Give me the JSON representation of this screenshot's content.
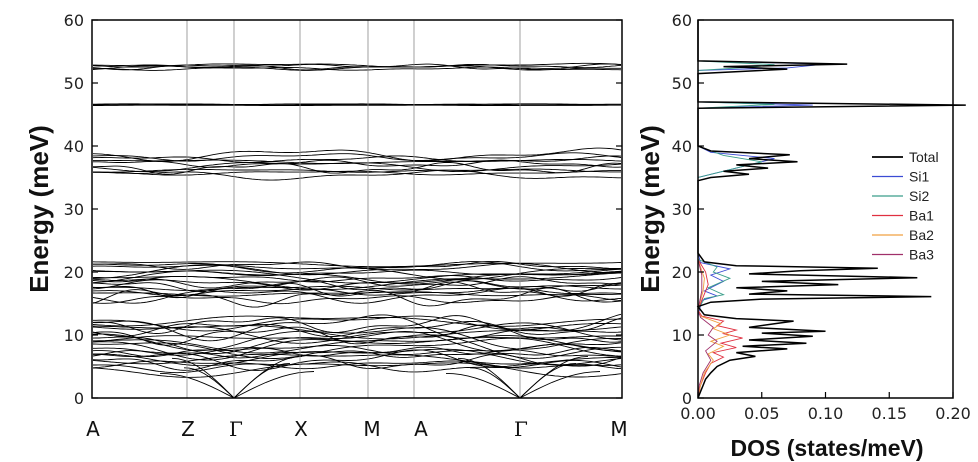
{
  "chart_data": [
    {
      "type": "line",
      "ylabel": "Energy (meV)",
      "ylim": [
        0,
        60
      ],
      "yticks": [
        "0",
        "10",
        "20",
        "30",
        "40",
        "50",
        "60"
      ],
      "kpath": [
        "A",
        "Z",
        "Γ",
        "X",
        "M",
        "A",
        "Γ",
        "M"
      ],
      "grid": "vertical lines at high-symmetry points",
      "band_groups_meV": {
        "acoustic_max": 6.5,
        "low_band_range": [
          3.5,
          13
        ],
        "mid_band_range": [
          15,
          22
        ],
        "upper_band_range": [
          35,
          39
        ],
        "flat_band": 46.5,
        "top_band_range": [
          52,
          53
        ]
      }
    },
    {
      "type": "line",
      "xlabel": "DOS (states/meV)",
      "ylabel": "Energy (meV)",
      "xlim": [
        0,
        0.2
      ],
      "ylim": [
        0,
        60
      ],
      "xticks": [
        "0.00",
        "0.05",
        "0.10",
        "0.15",
        "0.20"
      ],
      "yticks": [
        "0",
        "10",
        "20",
        "30",
        "40",
        "50",
        "60"
      ],
      "legend_position": "right",
      "series": [
        {
          "name": "Total",
          "color": "#000000",
          "points": [
            [
              0,
              0
            ],
            [
              0.002,
              1
            ],
            [
              0.004,
              2
            ],
            [
              0.006,
              3
            ],
            [
              0.01,
              4
            ],
            [
              0.015,
              5
            ],
            [
              0.025,
              6
            ],
            [
              0.045,
              6.6
            ],
            [
              0.03,
              7.2
            ],
            [
              0.07,
              7.8
            ],
            [
              0.035,
              8.2
            ],
            [
              0.085,
              8.7
            ],
            [
              0.04,
              9.2
            ],
            [
              0.09,
              9.8
            ],
            [
              0.05,
              10.3
            ],
            [
              0.1,
              10.6
            ],
            [
              0.04,
              11.2
            ],
            [
              0.06,
              11.8
            ],
            [
              0.075,
              12.2
            ],
            [
              0.03,
              12.6
            ],
            [
              0.005,
              13.2
            ],
            [
              0,
              14.5
            ],
            [
              0.01,
              15.2
            ],
            [
              0.05,
              15.7
            ],
            [
              0.183,
              16.1
            ],
            [
              0.04,
              16.5
            ],
            [
              0.07,
              17.0
            ],
            [
              0.03,
              17.5
            ],
            [
              0.11,
              18.0
            ],
            [
              0.05,
              18.5
            ],
            [
              0.172,
              19.1
            ],
            [
              0.04,
              19.7
            ],
            [
              0.08,
              20.2
            ],
            [
              0.141,
              20.6
            ],
            [
              0.03,
              21.0
            ],
            [
              0.005,
              21.6
            ],
            [
              0,
              23
            ],
            [
              0,
              34.5
            ],
            [
              0.01,
              35
            ],
            [
              0.04,
              35.5
            ],
            [
              0.02,
              36.0
            ],
            [
              0.055,
              36.5
            ],
            [
              0.03,
              37.0
            ],
            [
              0.078,
              37.5
            ],
            [
              0.04,
              38.0
            ],
            [
              0.072,
              38.6
            ],
            [
              0.01,
              39.2
            ],
            [
              0,
              40
            ],
            [
              0,
              46.0
            ],
            [
              0.21,
              46.5
            ],
            [
              0,
              47.0
            ],
            [
              0,
              51.5
            ],
            [
              0.07,
              52.2
            ],
            [
              0.02,
              52.6
            ],
            [
              0.117,
              53.0
            ],
            [
              0,
              53.5
            ],
            [
              0,
              60
            ]
          ]
        },
        {
          "name": "Si1",
          "color": "#3b4bd4",
          "points": [
            [
              0,
              0
            ],
            [
              0,
              13
            ],
            [
              0.003,
              15.5
            ],
            [
              0.015,
              16.2
            ],
            [
              0.005,
              17
            ],
            [
              0.02,
              18.5
            ],
            [
              0.01,
              19.5
            ],
            [
              0.025,
              20.5
            ],
            [
              0.002,
              21.5
            ],
            [
              0,
              23
            ],
            [
              0,
              35
            ],
            [
              0.03,
              36.5
            ],
            [
              0.06,
              38.0
            ],
            [
              0.01,
              39
            ],
            [
              0,
              40
            ],
            [
              0,
              46
            ],
            [
              0.09,
              46.5
            ],
            [
              0,
              47
            ],
            [
              0,
              52
            ],
            [
              0.07,
              52.4
            ],
            [
              0.1,
              53
            ],
            [
              0,
              53.5
            ],
            [
              0,
              60
            ]
          ]
        },
        {
          "name": "Si2",
          "color": "#3a9e8a",
          "points": [
            [
              0,
              0
            ],
            [
              0,
              14
            ],
            [
              0.005,
              15.8
            ],
            [
              0.02,
              16.4
            ],
            [
              0.008,
              17.5
            ],
            [
              0.025,
              19
            ],
            [
              0.012,
              20
            ],
            [
              0.015,
              20.8
            ],
            [
              0,
              22
            ],
            [
              0,
              35
            ],
            [
              0.02,
              36
            ],
            [
              0.05,
              37.5
            ],
            [
              0.02,
              38.5
            ],
            [
              0,
              40
            ],
            [
              0,
              46
            ],
            [
              0.06,
              46.6
            ],
            [
              0,
              47
            ],
            [
              0,
              52
            ],
            [
              0.04,
              52.5
            ],
            [
              0.06,
              52.9
            ],
            [
              0,
              53.5
            ],
            [
              0,
              60
            ]
          ]
        },
        {
          "name": "Ba1",
          "color": "#e03040",
          "points": [
            [
              0,
              0
            ],
            [
              0.002,
              2
            ],
            [
              0.006,
              4
            ],
            [
              0.01,
              5.5
            ],
            [
              0.02,
              6.5
            ],
            [
              0.012,
              7.2
            ],
            [
              0.03,
              8
            ],
            [
              0.018,
              8.7
            ],
            [
              0.035,
              9.5
            ],
            [
              0.02,
              10.2
            ],
            [
              0.03,
              10.8
            ],
            [
              0.015,
              11.5
            ],
            [
              0.02,
              12.2
            ],
            [
              0.003,
              13
            ],
            [
              0,
              14
            ],
            [
              0.004,
              16
            ],
            [
              0.008,
              18
            ],
            [
              0.006,
              20
            ],
            [
              0,
              22
            ],
            [
              0,
              60
            ]
          ]
        },
        {
          "name": "Ba2",
          "color": "#f0a040",
          "points": [
            [
              0,
              0
            ],
            [
              0.002,
              2
            ],
            [
              0.005,
              4
            ],
            [
              0.012,
              6
            ],
            [
              0.008,
              7
            ],
            [
              0.02,
              8.2
            ],
            [
              0.01,
              9
            ],
            [
              0.025,
              10
            ],
            [
              0.012,
              11
            ],
            [
              0.018,
              11.8
            ],
            [
              0.002,
              13
            ],
            [
              0,
              14
            ],
            [
              0.004,
              17
            ],
            [
              0.005,
              19
            ],
            [
              0,
              22
            ],
            [
              0,
              60
            ]
          ]
        },
        {
          "name": "Ba3",
          "color": "#a0306a",
          "points": [
            [
              0,
              0
            ],
            [
              0.001,
              2
            ],
            [
              0.004,
              4
            ],
            [
              0.01,
              6
            ],
            [
              0.006,
              7.5
            ],
            [
              0.015,
              9
            ],
            [
              0.008,
              10
            ],
            [
              0.012,
              11.2
            ],
            [
              0.002,
              12.8
            ],
            [
              0,
              14
            ],
            [
              0.003,
              17
            ],
            [
              0.003,
              19.5
            ],
            [
              0,
              22
            ],
            [
              0,
              60
            ]
          ]
        }
      ]
    }
  ]
}
